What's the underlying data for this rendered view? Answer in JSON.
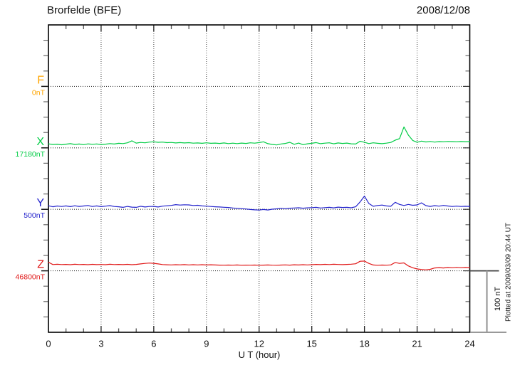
{
  "header": {
    "title": "Brorfelde (BFE)",
    "date": "2008/12/08"
  },
  "chart_data": {
    "type": "line",
    "station": "Brorfelde (BFE)",
    "date": "2008/12/08",
    "xlabel": "U T (hour)",
    "x_range": [
      0,
      24
    ],
    "x_major_ticks": [
      0,
      3,
      6,
      9,
      12,
      15,
      18,
      21,
      24
    ],
    "x_minor_step_hours": 1,
    "grid_hours": [
      3,
      6,
      9,
      12,
      15,
      18,
      21
    ],
    "y_minor_divisions": 20,
    "nT_per_division": 25,
    "scale_bar": {
      "label": "100 nT",
      "nT": 100
    },
    "plotted_note": "Plotted at 2009/03/09 20:44 UT",
    "sample_step_hours": 0.25,
    "units": "nT offset from baseline",
    "channels": [
      {
        "id": "F",
        "label": "F",
        "baseline_value": "0nT",
        "color": "#FFA500",
        "baseline_division": 4,
        "values": []
      },
      {
        "id": "X",
        "label": "X",
        "baseline_value": "17180nT",
        "color": "#00CC44",
        "baseline_division": 8,
        "values": [
          6.5,
          5.5,
          6.0,
          5.0,
          6.0,
          6.8,
          5.5,
          6.2,
          5.2,
          6.5,
          5.8,
          6.4,
          5.4,
          6.0,
          7.0,
          6.2,
          7.4,
          7.0,
          8.2,
          11.5,
          7.8,
          8.8,
          8.2,
          9.4,
          9.8,
          9.0,
          9.4,
          8.4,
          8.8,
          8.0,
          8.6,
          8.0,
          8.4,
          7.6,
          8.0,
          7.4,
          8.2,
          7.4,
          7.8,
          7.2,
          8.0,
          7.0,
          7.6,
          7.0,
          7.8,
          7.2,
          8.2,
          7.6,
          8.6,
          9.8,
          6.8,
          5.6,
          4.8,
          6.4,
          7.2,
          9.0,
          5.8,
          7.8,
          5.2,
          6.6,
          7.4,
          8.6,
          6.8,
          7.6,
          8.2,
          6.6,
          8.0,
          7.2,
          7.8,
          6.6,
          6.2,
          10.8,
          9.2,
          7.0,
          8.2,
          7.4,
          6.8,
          7.6,
          8.8,
          12.5,
          15.0,
          34.0,
          21.0,
          12.0,
          9.2,
          11.0,
          9.6,
          10.4,
          9.4,
          10.2,
          10.0,
          10.4,
          10.2,
          10.0,
          10.3,
          10.1,
          10.2
        ]
      },
      {
        "id": "Y",
        "label": "Y",
        "baseline_value": "500nT",
        "color": "#2222CC",
        "baseline_division": 12,
        "values": [
          5.8,
          4.2,
          5.4,
          4.6,
          5.6,
          4.4,
          5.8,
          4.8,
          5.4,
          6.2,
          4.6,
          5.6,
          4.4,
          5.2,
          6.0,
          4.6,
          4.2,
          3.2,
          4.8,
          3.6,
          3.2,
          5.0,
          3.8,
          4.6,
          4.8,
          3.8,
          5.2,
          5.8,
          6.4,
          7.6,
          7.0,
          7.4,
          7.2,
          6.2,
          6.6,
          5.6,
          5.2,
          4.6,
          4.2,
          3.8,
          3.4,
          3.0,
          2.2,
          1.6,
          1.0,
          0.6,
          -0.2,
          -0.8,
          -1.2,
          -0.2,
          -1.0,
          0.2,
          0.8,
          1.6,
          1.0,
          1.8,
          2.2,
          2.6,
          1.8,
          2.4,
          2.8,
          3.2,
          2.2,
          2.8,
          3.2,
          2.4,
          3.6,
          3.0,
          3.2,
          2.6,
          4.2,
          12.0,
          21.5,
          9.5,
          5.0,
          6.2,
          7.0,
          5.6,
          5.0,
          11.5,
          8.0,
          6.2,
          8.0,
          6.6,
          7.2,
          10.5,
          6.0,
          4.8,
          6.0,
          5.2,
          6.4,
          5.4,
          4.6,
          5.2,
          4.6,
          5.0,
          4.8
        ]
      },
      {
        "id": "Z",
        "label": "Z",
        "baseline_value": "46800nT",
        "color": "#E01818",
        "baseline_division": 16,
        "values": [
          14.0,
          10.2,
          10.6,
          10.2,
          10.4,
          10.0,
          10.6,
          10.2,
          10.4,
          10.0,
          10.5,
          10.1,
          10.3,
          10.0,
          10.6,
          10.2,
          10.4,
          10.1,
          10.5,
          10.0,
          10.4,
          11.2,
          12.0,
          12.6,
          12.2,
          11.2,
          10.2,
          9.8,
          9.6,
          10.0,
          9.7,
          10.1,
          9.6,
          9.9,
          9.6,
          10.0,
          9.5,
          9.8,
          9.5,
          9.3,
          9.1,
          9.4,
          9.2,
          9.5,
          9.0,
          9.3,
          9.1,
          9.4,
          9.0,
          9.3,
          9.5,
          9.2,
          9.0,
          9.4,
          9.6,
          9.3,
          9.8,
          9.5,
          9.9,
          9.6,
          10.0,
          10.4,
          10.1,
          10.5,
          10.2,
          10.6,
          10.3,
          10.1,
          10.4,
          10.8,
          11.5,
          15.5,
          15.8,
          12.0,
          9.5,
          9.0,
          9.4,
          9.2,
          9.6,
          13.5,
          12.0,
          12.8,
          8.0,
          5.0,
          3.0,
          2.2,
          1.6,
          2.4,
          4.6,
          5.2,
          4.6,
          5.4,
          5.0,
          5.5,
          5.1,
          5.4,
          5.2
        ]
      }
    ]
  }
}
